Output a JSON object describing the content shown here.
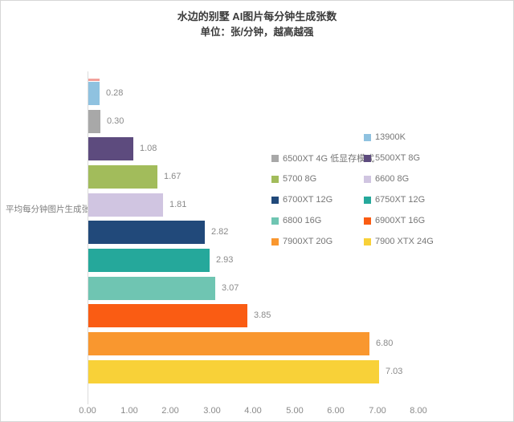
{
  "header": {
    "title": "水边的别墅 AI图片每分钟生成张数",
    "subtitle": "单位：张/分钟，越高越强"
  },
  "axis": {
    "category_axis_label": "平均每分钟图片生成张数"
  },
  "colors": {
    "axis_line": "#dcdcdc",
    "tick_text": "#8a8a8a",
    "value_text": "#8a8a8a",
    "legend_text": "#767676",
    "title_text": "#3a3a3a"
  },
  "chart_data": {
    "type": "bar",
    "orientation": "horizontal",
    "title": "水边的别墅 AI图片每分钟生成张数",
    "subtitle": "单位：张/分钟，越高越强",
    "xlabel": "",
    "ylabel": "平均每分钟图片生成张数",
    "xlim": [
      0,
      8
    ],
    "x_ticks": [
      "0.00",
      "1.00",
      "2.00",
      "3.00",
      "4.00",
      "5.00",
      "6.00",
      "7.00",
      "8.00"
    ],
    "grid": false,
    "legend_position": "inside-right-two-columns",
    "bars": [
      {
        "label": "13900K",
        "value": 0.28,
        "display": "0.28",
        "color": "#8fc2e0"
      },
      {
        "label": "6500XT 4G 低显存模式",
        "value": 0.3,
        "display": "0.30",
        "color": "#a8a8a8"
      },
      {
        "label": "5500XT 8G",
        "value": 1.08,
        "display": "1.08",
        "color": "#5d4b7e"
      },
      {
        "label": "5700 8G",
        "value": 1.67,
        "display": "1.67",
        "color": "#a2bc5b"
      },
      {
        "label": "6600 8G",
        "value": 1.81,
        "display": "1.81",
        "color": "#d0c5e1"
      },
      {
        "label": "6700XT 12G",
        "value": 2.82,
        "display": "2.82",
        "color": "#21497a"
      },
      {
        "label": "6750XT 12G",
        "value": 2.93,
        "display": "2.93",
        "color": "#25a89b"
      },
      {
        "label": "6800 16G",
        "value": 3.07,
        "display": "3.07",
        "color": "#6fc5b2"
      },
      {
        "label": "6900XT 16G",
        "value": 3.85,
        "display": "3.85",
        "color": "#fa5c13"
      },
      {
        "label": "7900XT 20G",
        "value": 6.8,
        "display": "6.80",
        "color": "#f9972f"
      },
      {
        "label": "7900 XTX 24G",
        "value": 7.03,
        "display": "7.03",
        "color": "#f8d138"
      }
    ],
    "partial_bar_top": {
      "color": "#f2a19b",
      "note": "thin clipped bar sliver at top of plot"
    }
  }
}
